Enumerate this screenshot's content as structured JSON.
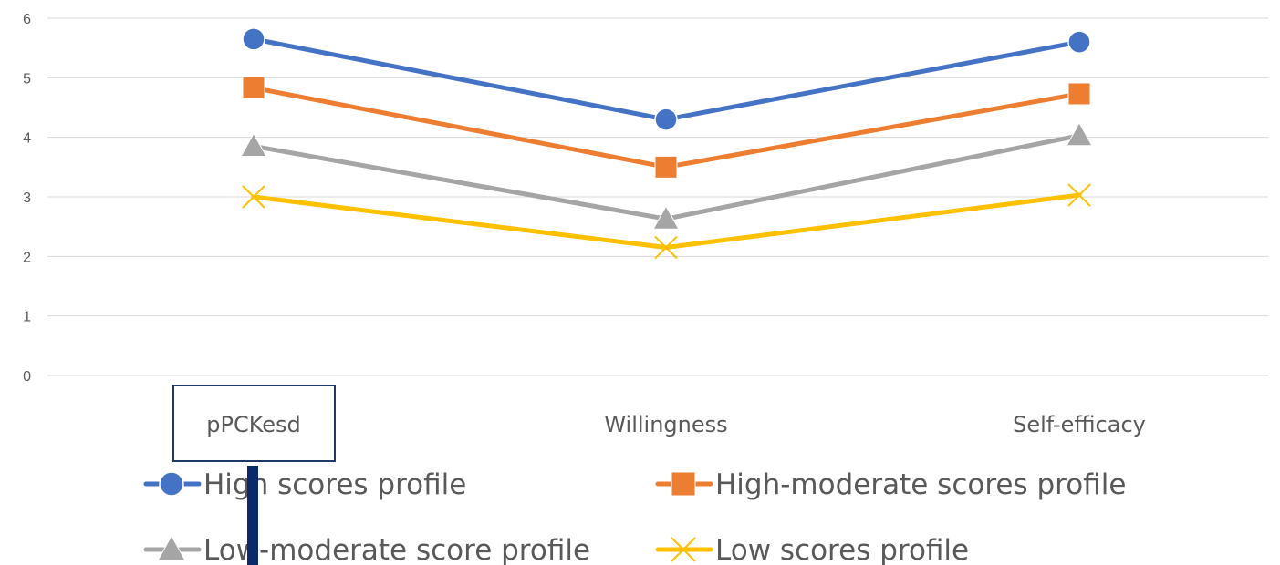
{
  "chart_data": {
    "type": "line",
    "categories": [
      "pPCKesd",
      "Willingness",
      "Self-efficacy"
    ],
    "ylim": [
      0,
      6
    ],
    "yticks": [
      0,
      1,
      2,
      3,
      4,
      5,
      6
    ],
    "grid": true,
    "legend_position": "bottom",
    "series": [
      {
        "name": "High scores profile",
        "values": [
          5.65,
          4.3,
          5.6
        ],
        "color": "#4472C4",
        "marker": "circle"
      },
      {
        "name": "High-moderate scores profile",
        "values": [
          4.83,
          3.5,
          4.73
        ],
        "color": "#ED7D31",
        "marker": "square"
      },
      {
        "name": "Low-moderate score profile",
        "values": [
          3.85,
          2.63,
          4.03
        ],
        "color": "#A5A5A5",
        "marker": "triangle"
      },
      {
        "name": "Low scores profile",
        "values": [
          3.0,
          2.15,
          3.03
        ],
        "color": "#FFC000",
        "marker": "x"
      }
    ]
  }
}
